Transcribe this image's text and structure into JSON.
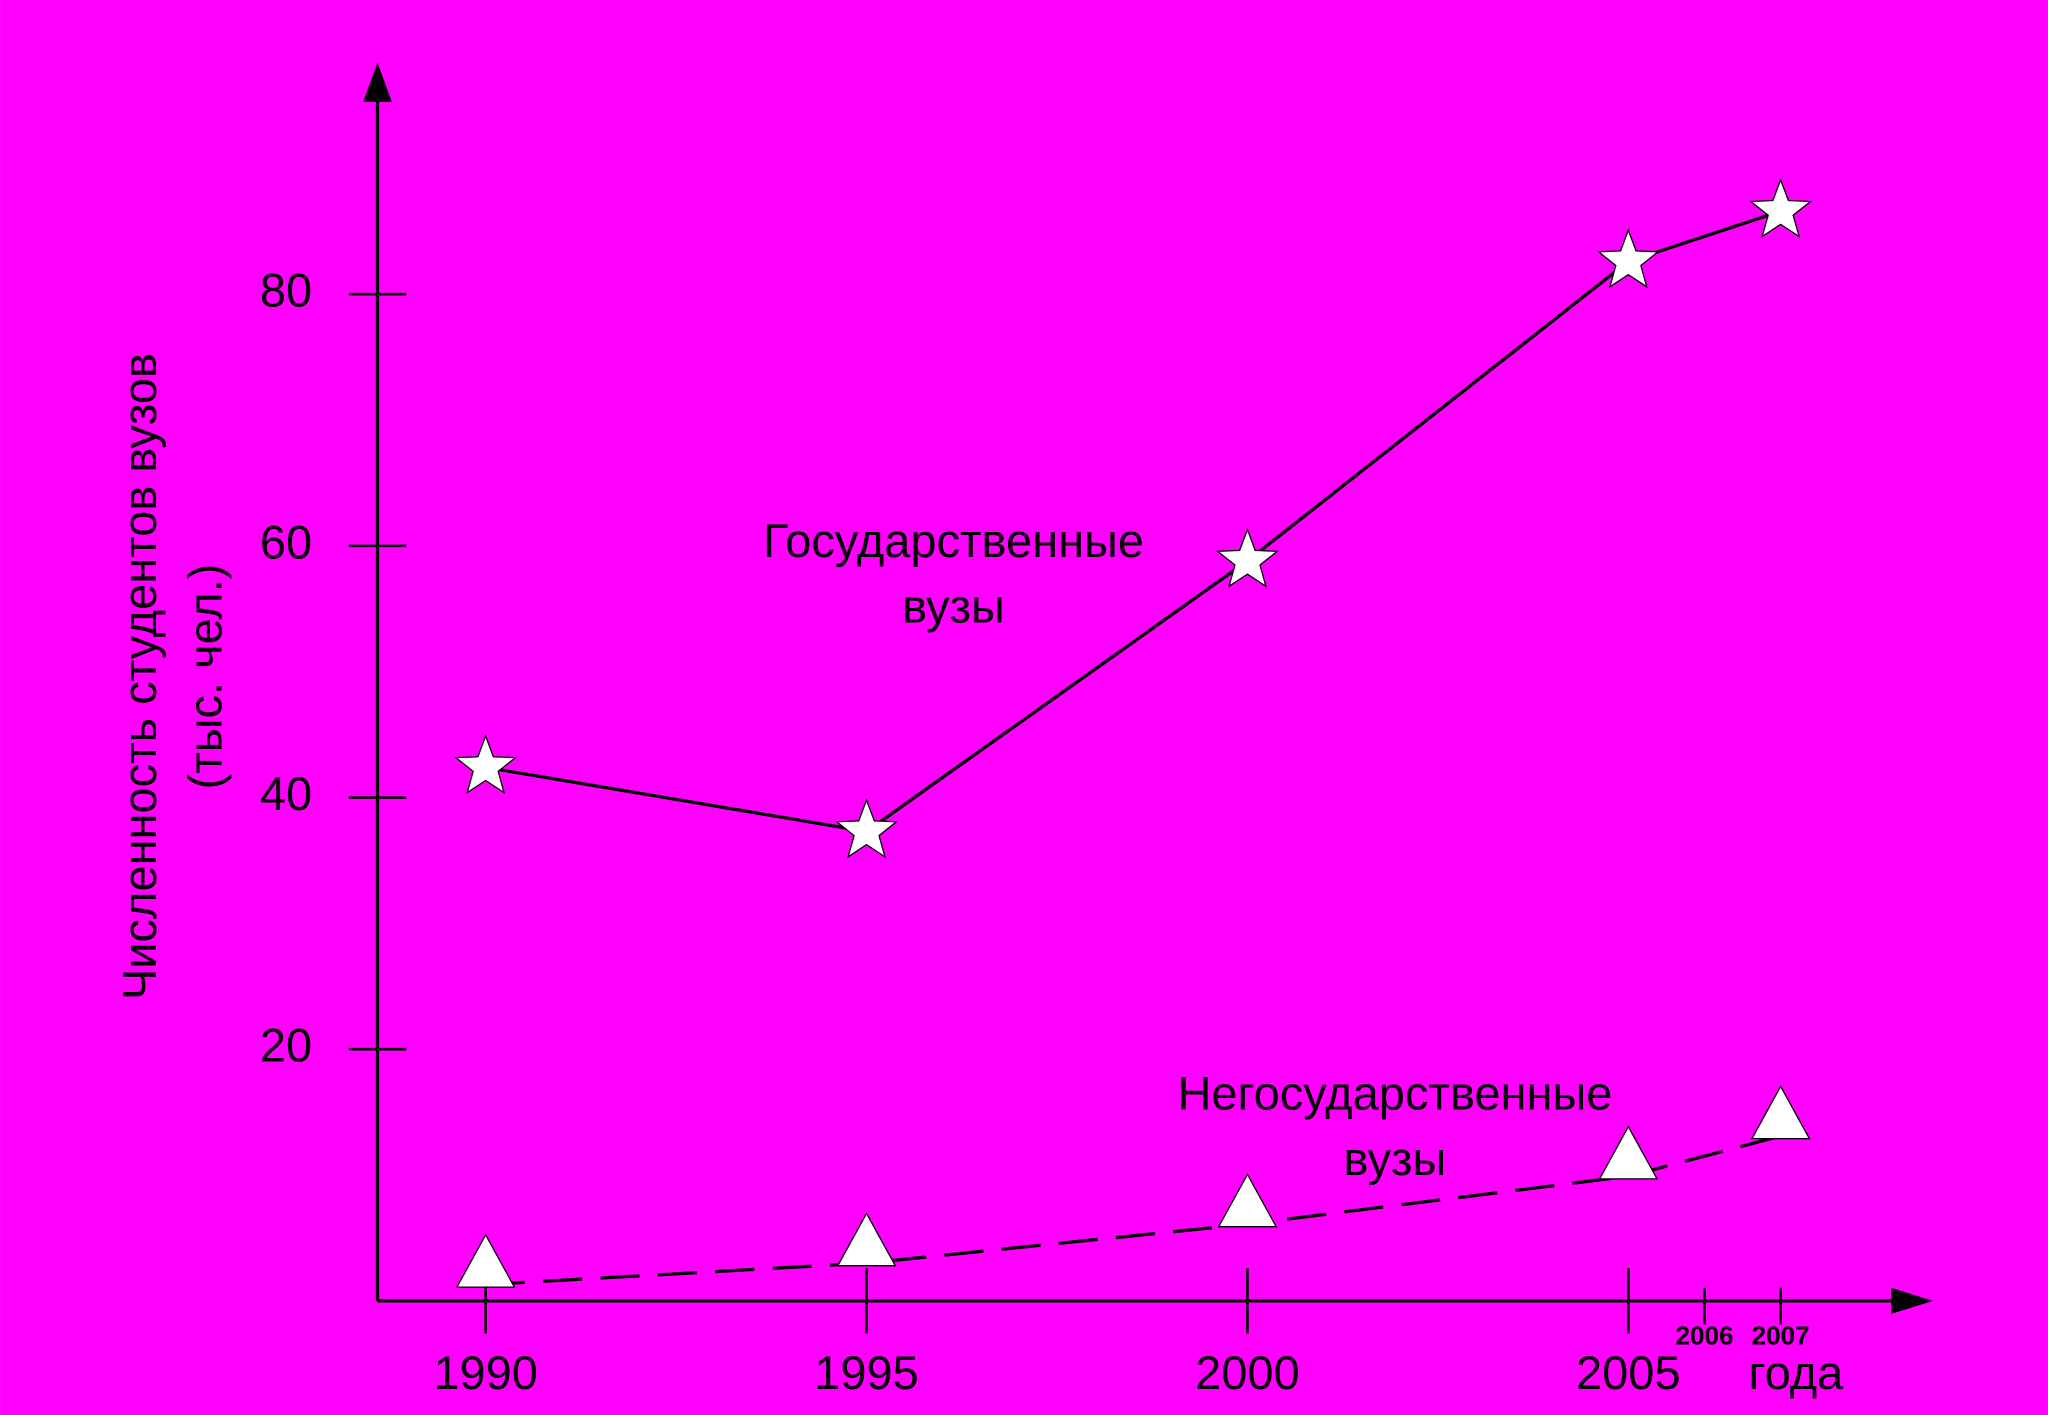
{
  "chart_data": {
    "type": "line",
    "background": "#ff00ff",
    "y_label": [
      "Численность студентов вузов",
      "(тыс. чел.)"
    ],
    "x_label": "года",
    "x": [
      1990,
      1995,
      2000,
      2005,
      2007
    ],
    "series": [
      {
        "name": [
          "Государственные",
          "вузы"
        ],
        "color": "#000000",
        "marker": "star",
        "marker_color": "#ffffff",
        "dashed": false,
        "values": [
          42.4,
          37.3,
          58.8,
          82.6,
          86.6
        ]
      },
      {
        "name": [
          "Негосударственные",
          "вузы"
        ],
        "color": "#000000",
        "marker": "triangle",
        "marker_color": "#ffffff",
        "dashed": true,
        "values": [
          1.3,
          3.0,
          6.1,
          9.9,
          13.1
        ]
      }
    ],
    "xlim": [
      1988.58,
      2009.0
    ],
    "ylim": [
      0,
      98.4
    ],
    "xticks": [
      1990,
      1995,
      2000,
      2005,
      2006,
      2007
    ],
    "yticks": [
      20,
      40,
      60,
      80
    ]
  }
}
